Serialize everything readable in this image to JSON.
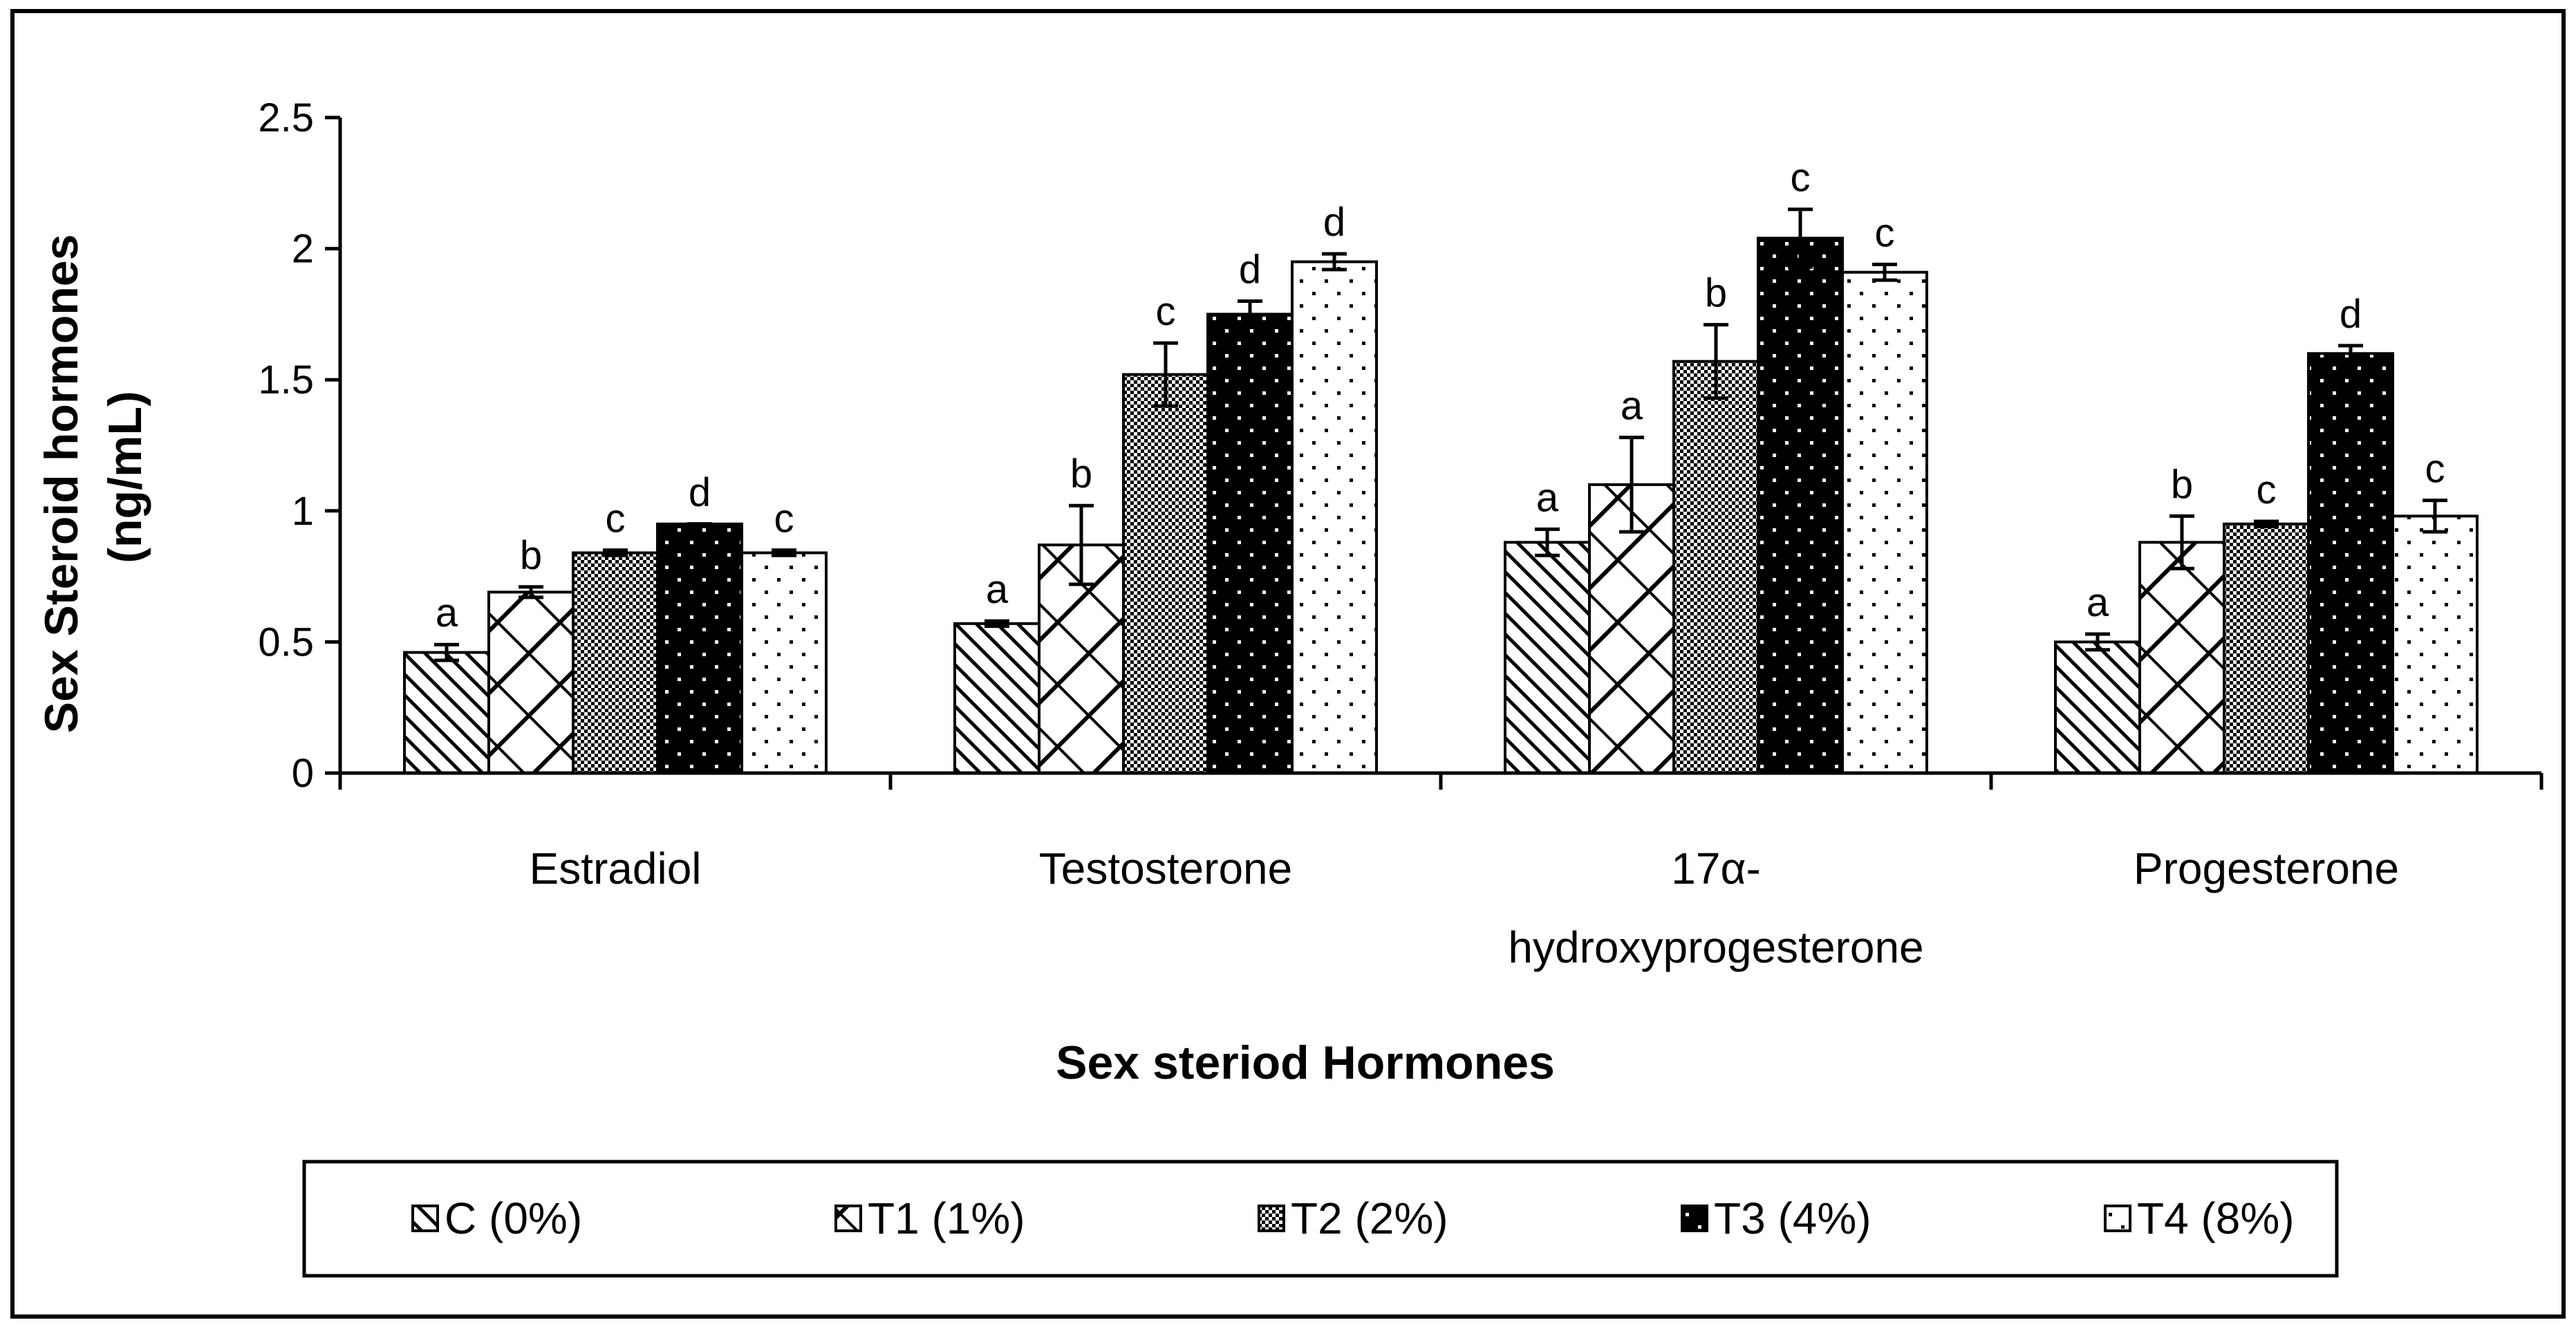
{
  "chart_data": {
    "type": "bar",
    "title": "",
    "xlabel": "Sex steriod Hormones",
    "ylabel_line1": "Sex Steroid hormones",
    "ylabel_line2": "(ng/mL)",
    "ylim": [
      0,
      2.5
    ],
    "yticks": [
      "0",
      "0.5",
      "1",
      "1.5",
      "2",
      "2.5"
    ],
    "ytick_values": [
      0,
      0.5,
      1,
      1.5,
      2,
      2.5
    ],
    "categories": [
      {
        "line1": "Estradiol",
        "line2": ""
      },
      {
        "line1": "Testosterone",
        "line2": ""
      },
      {
        "line1": "17α-",
        "line2": "hydroxyprogesterone"
      },
      {
        "line1": "Progesterone",
        "line2": ""
      }
    ],
    "series": [
      {
        "name": "C (0%)",
        "pattern": "diag",
        "values": [
          0.46,
          0.57,
          0.88,
          0.5
        ],
        "errors": [
          0.03,
          0.01,
          0.05,
          0.03
        ],
        "sig": [
          "a",
          "a",
          "a",
          "a"
        ]
      },
      {
        "name": "T1 (1%)",
        "pattern": "lattice",
        "values": [
          0.69,
          0.87,
          1.1,
          0.88
        ],
        "errors": [
          0.02,
          0.15,
          0.18,
          0.1
        ],
        "sig": [
          "b",
          "b",
          "a",
          "b"
        ]
      },
      {
        "name": "T2 (2%)",
        "pattern": "check",
        "values": [
          0.84,
          1.52,
          1.57,
          0.95
        ],
        "errors": [
          0.01,
          0.12,
          0.14,
          0.01
        ],
        "sig": [
          "c",
          "c",
          "b",
          "c"
        ]
      },
      {
        "name": "T3 (4%)",
        "pattern": "darkdots",
        "values": [
          0.95,
          1.75,
          2.04,
          1.6
        ],
        "errors": [
          0.0,
          0.05,
          0.11,
          0.03
        ],
        "sig": [
          "d",
          "d",
          "c",
          "d"
        ]
      },
      {
        "name": "T4 (8%)",
        "pattern": "lightdots",
        "values": [
          0.84,
          1.95,
          1.91,
          0.98
        ],
        "errors": [
          0.01,
          0.03,
          0.03,
          0.06
        ],
        "sig": [
          "c",
          "d",
          "c",
          "c"
        ]
      }
    ],
    "legend_position": "bottom",
    "grid": false
  }
}
